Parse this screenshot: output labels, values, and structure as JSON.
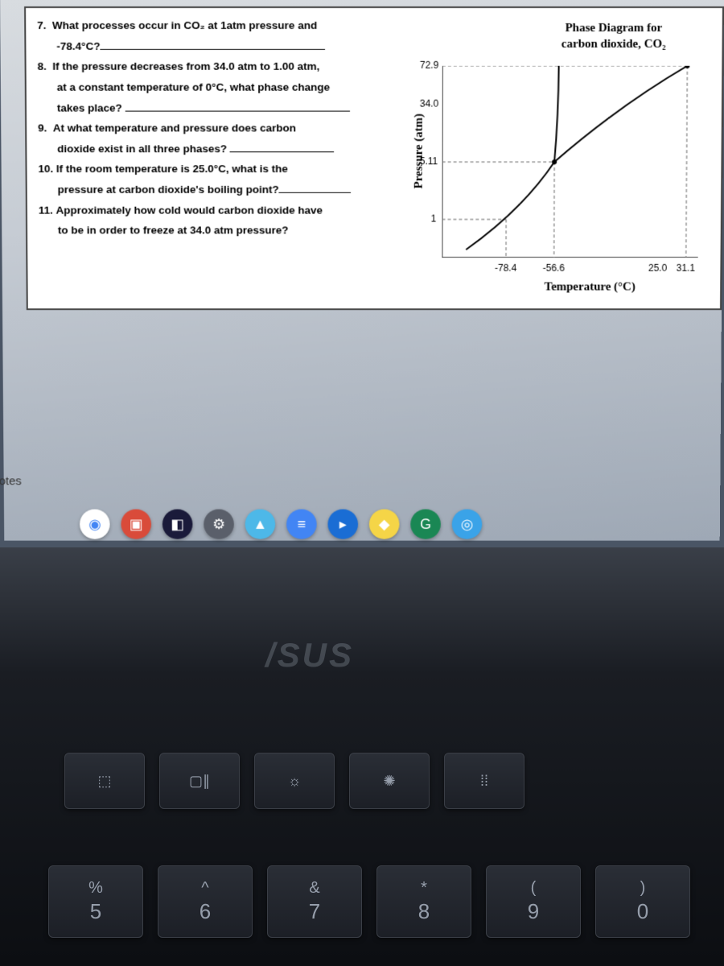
{
  "notes_label": "otes",
  "questions": {
    "q7": {
      "num": "7.",
      "text1": "What processes occur in CO₂ at 1atm pressure and",
      "text2": "-78.4°C?"
    },
    "q8": {
      "num": "8.",
      "text1": "If the pressure decreases from 34.0 atm to 1.00 atm,",
      "text2": "at a constant temperature of 0°C, what phase change",
      "text3": "takes place?"
    },
    "q9": {
      "num": "9.",
      "text1": "At what temperature and pressure does carbon",
      "text2": "dioxide exist in all three phases?"
    },
    "q10": {
      "num": "10.",
      "text1": "If the room temperature is 25.0°C, what is the",
      "text2": "pressure at carbon dioxide's boiling point?"
    },
    "q11": {
      "num": "11.",
      "text1": "Approximately how cold would carbon dioxide have",
      "text2": "to be in order to freeze at 34.0 atm pressure?"
    }
  },
  "chart": {
    "title1": "Phase Diagram for",
    "title2": "carbon dioxide, CO₂",
    "y_label": "Pressure (atm)",
    "x_label": "Temperature (°C)",
    "y_ticks": [
      "72.9",
      "34.0",
      "5.11",
      "1"
    ],
    "y_tick_positions": [
      0,
      48,
      120,
      192
    ],
    "x_ticks": [
      "-78.4",
      "-56.6",
      "25.0",
      "31.1"
    ],
    "x_tick_positions": [
      80,
      140,
      270,
      305
    ],
    "line_color": "#000000",
    "dash_color": "#666666",
    "background": "#ffffff"
  },
  "taskbar_icons": [
    {
      "name": "chrome",
      "bg": "#ffffff",
      "glyph": "◉",
      "color": "#4285f4"
    },
    {
      "name": "app1",
      "bg": "#d94b3a",
      "glyph": "▣"
    },
    {
      "name": "app2",
      "bg": "#1a1a3a",
      "glyph": "◧"
    },
    {
      "name": "settings",
      "bg": "#5a5f6a",
      "glyph": "⚙"
    },
    {
      "name": "app3",
      "bg": "#4db8e8",
      "glyph": "▲"
    },
    {
      "name": "docs",
      "bg": "#4285f4",
      "glyph": "≡"
    },
    {
      "name": "app4",
      "bg": "#1a6dd4",
      "glyph": "▸"
    },
    {
      "name": "app5",
      "bg": "#f5d547",
      "glyph": "◆"
    },
    {
      "name": "app6",
      "bg": "#1a8754",
      "glyph": "G"
    },
    {
      "name": "camera",
      "bg": "#3aa3e8",
      "glyph": "◎"
    }
  ],
  "keyboard": {
    "fn_row": [
      {
        "glyph": "⬚",
        "name": "fullscreen"
      },
      {
        "glyph": "▢∥",
        "name": "overview"
      },
      {
        "glyph": "☼",
        "name": "brightness-down"
      },
      {
        "glyph": "✺",
        "name": "brightness-up"
      },
      {
        "glyph": "⁞⁞",
        "name": "keyboard-backlight"
      }
    ],
    "num_row": [
      {
        "upper": "%",
        "lower": "5"
      },
      {
        "upper": "^",
        "lower": "6"
      },
      {
        "upper": "&",
        "lower": "7"
      },
      {
        "upper": "*",
        "lower": "8"
      },
      {
        "upper": "(",
        "lower": "9"
      },
      {
        "upper": ")",
        "lower": "0"
      }
    ]
  },
  "logo": "/SUS"
}
